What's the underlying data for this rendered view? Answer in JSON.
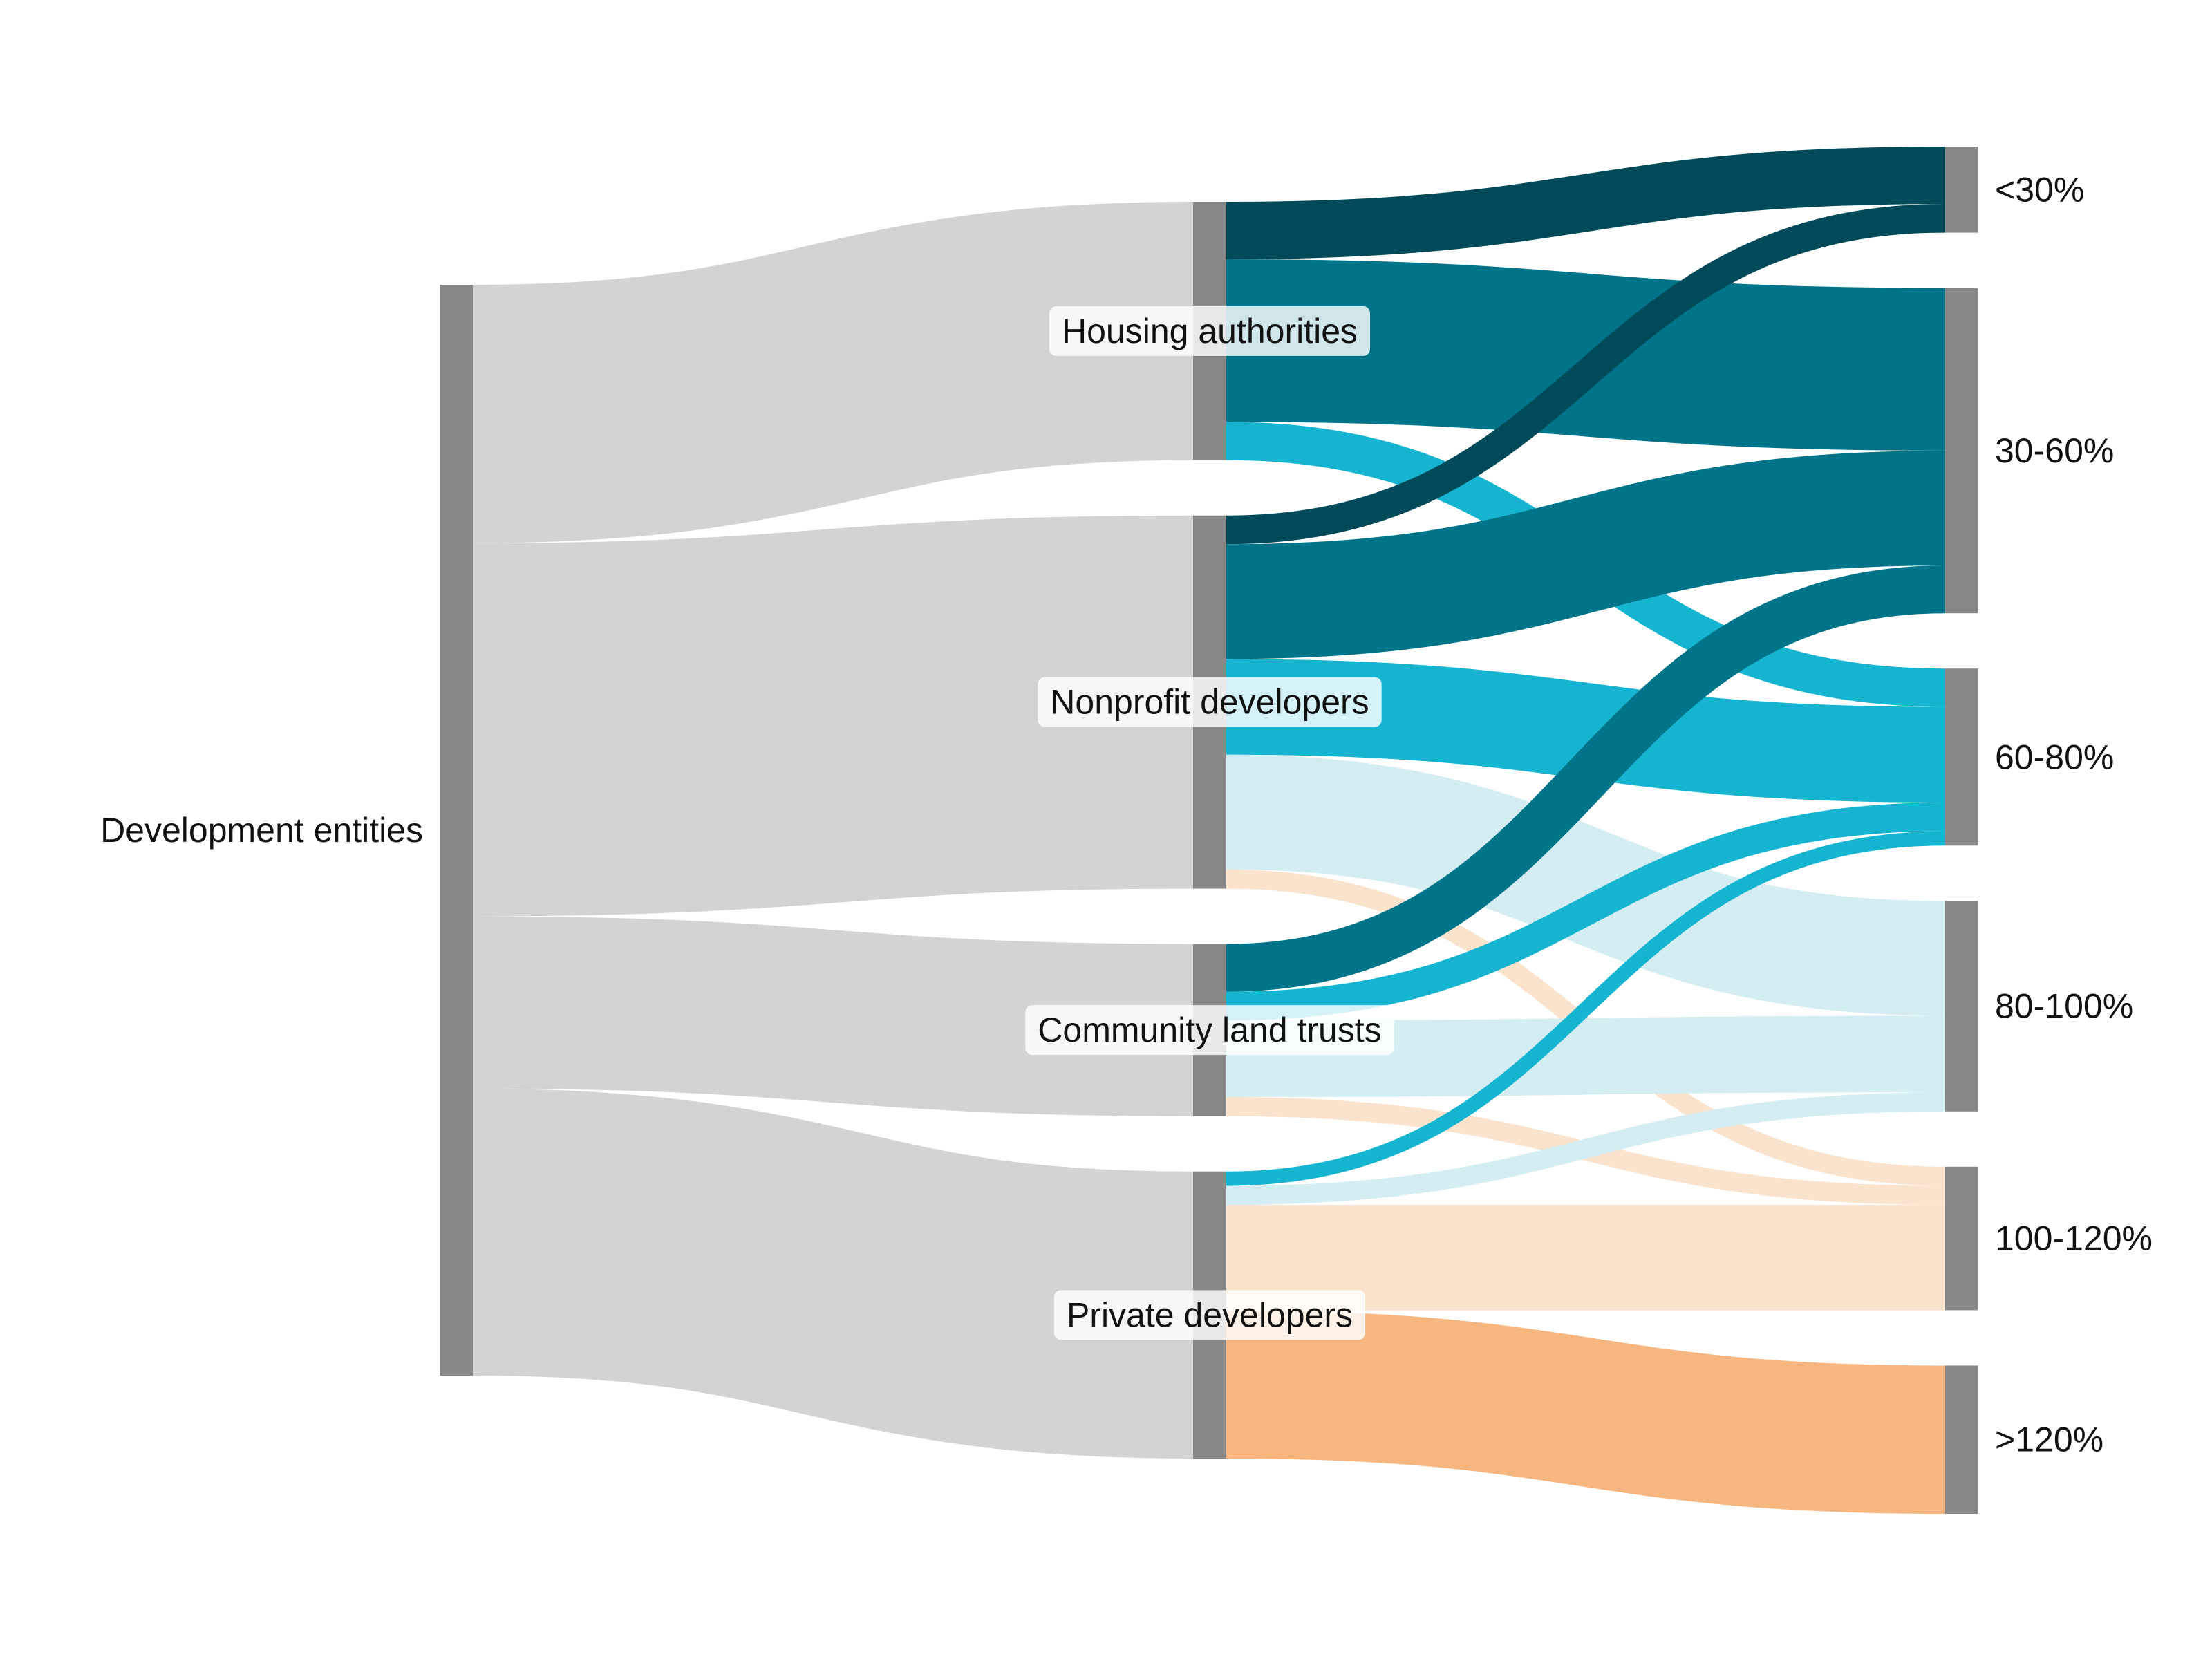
{
  "chart_data": {
    "type": "sankey",
    "nodes": [
      {
        "id": "dev",
        "label": "Development entities",
        "column": 0
      },
      {
        "id": "ha",
        "label": "Housing authorities",
        "column": 1
      },
      {
        "id": "np",
        "label": "Nonprofit developers",
        "column": 1
      },
      {
        "id": "clt",
        "label": "Community land trusts",
        "column": 1
      },
      {
        "id": "pd",
        "label": "Private developers",
        "column": 1
      },
      {
        "id": "lt30",
        "label": "<30%",
        "column": 2
      },
      {
        "id": "b30_60",
        "label": "30-60%",
        "column": 2
      },
      {
        "id": "b60_80",
        "label": "60-80%",
        "column": 2
      },
      {
        "id": "b80_100",
        "label": "80-100%",
        "column": 2
      },
      {
        "id": "b100_120",
        "label": "100-120%",
        "column": 2
      },
      {
        "id": "gt120",
        "label": ">120%",
        "column": 2
      }
    ],
    "links": [
      {
        "source": "dev",
        "target": "ha",
        "value": 27
      },
      {
        "source": "dev",
        "target": "np",
        "value": 39
      },
      {
        "source": "dev",
        "target": "clt",
        "value": 18
      },
      {
        "source": "dev",
        "target": "pd",
        "value": 30
      },
      {
        "source": "ha",
        "target": "lt30",
        "value": 6
      },
      {
        "source": "ha",
        "target": "b30_60",
        "value": 17
      },
      {
        "source": "ha",
        "target": "b60_80",
        "value": 4
      },
      {
        "source": "np",
        "target": "lt30",
        "value": 3
      },
      {
        "source": "np",
        "target": "b30_60",
        "value": 12
      },
      {
        "source": "np",
        "target": "b60_80",
        "value": 10
      },
      {
        "source": "np",
        "target": "b80_100",
        "value": 12
      },
      {
        "source": "np",
        "target": "b100_120",
        "value": 2
      },
      {
        "source": "clt",
        "target": "b30_60",
        "value": 5
      },
      {
        "source": "clt",
        "target": "b60_80",
        "value": 3
      },
      {
        "source": "clt",
        "target": "b80_100",
        "value": 8
      },
      {
        "source": "clt",
        "target": "b100_120",
        "value": 2
      },
      {
        "source": "pd",
        "target": "b60_80",
        "value": 1.5
      },
      {
        "source": "pd",
        "target": "b80_100",
        "value": 2
      },
      {
        "source": "pd",
        "target": "b100_120",
        "value": 11
      },
      {
        "source": "pd",
        "target": "gt120",
        "value": 15.5
      }
    ]
  },
  "colors": {
    "node": "#888888",
    "first_level_link": "#d3d3d3",
    "lt30": "#004a59",
    "b30_60": "#00758a",
    "b60_80": "#15b5d1",
    "b80_100": "#d4edf2",
    "b100_120": "#fae3cc",
    "gt120": "#f7b57f"
  }
}
